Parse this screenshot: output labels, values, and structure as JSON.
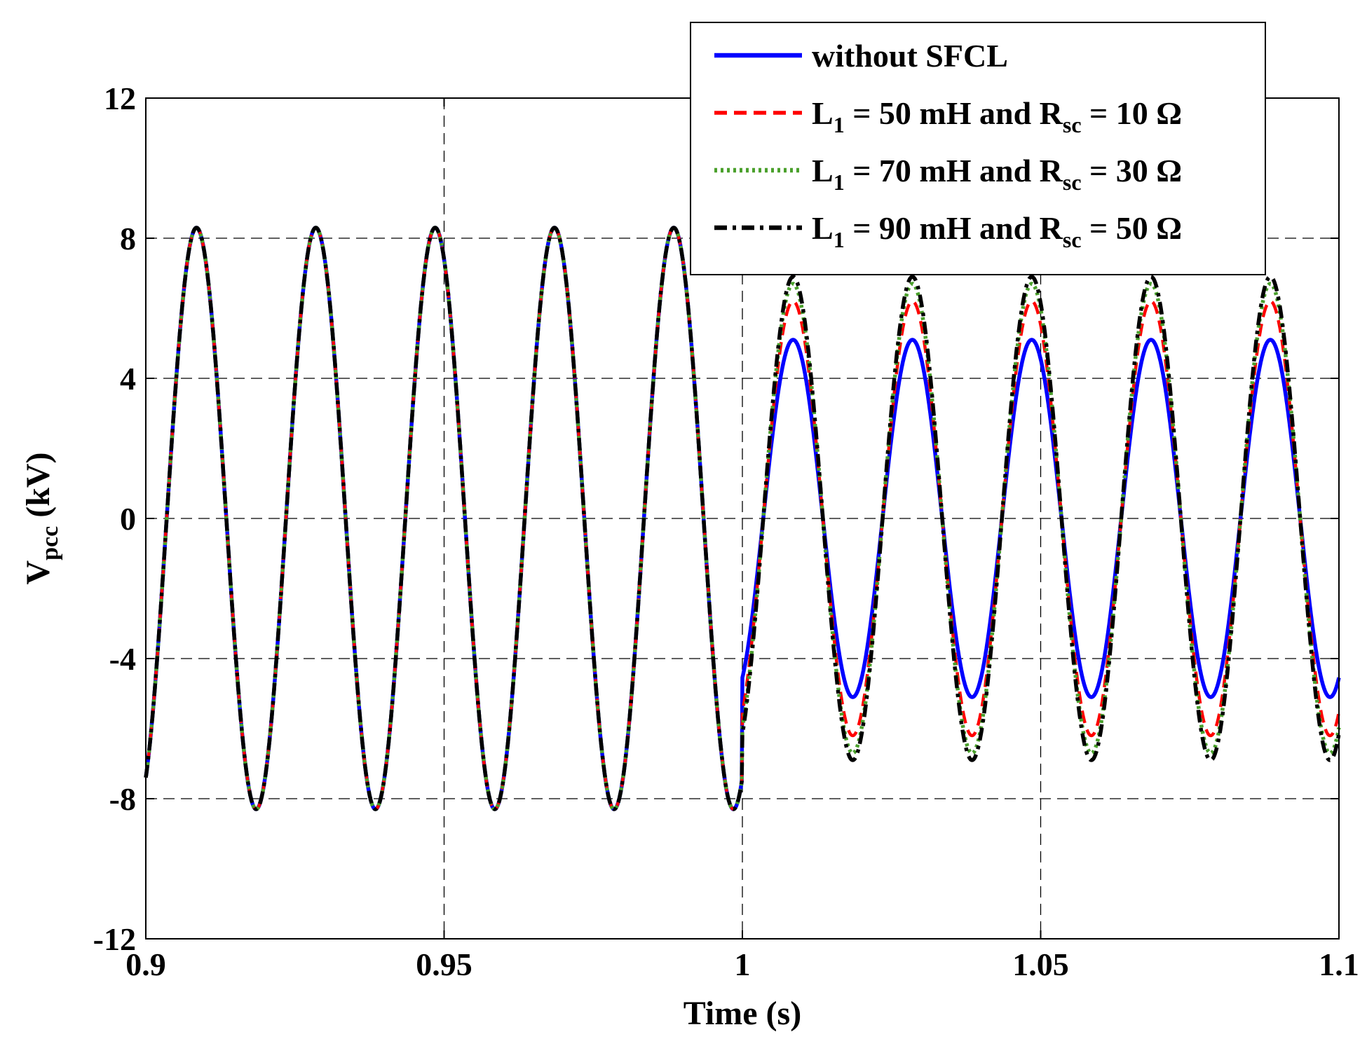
{
  "chart_data": {
    "type": "line",
    "title": "",
    "xlabel": "Time (s)",
    "ylabel": {
      "main": "V",
      "sub": "pcc",
      "unit": " (kV)"
    },
    "xlim": [
      0.9,
      1.1
    ],
    "ylim": [
      -12,
      12
    ],
    "xticks": [
      0.9,
      0.95,
      1.0,
      1.05,
      1.1
    ],
    "xtick_labels": [
      "0.9",
      "0.95",
      "1",
      "1.05",
      "1.1"
    ],
    "yticks": [
      -12,
      -8,
      -4,
      0,
      4,
      8,
      12
    ],
    "ytick_labels": [
      "-12",
      "-8",
      "-4",
      "0",
      "4",
      "8",
      "12"
    ],
    "grid": true,
    "legend_position": "top-right",
    "signal": {
      "frequency_hz": 50,
      "phase_deg": -63,
      "fault_time_s": 1.0,
      "prefault_amplitude_kv": 8.3
    },
    "series": [
      {
        "name": "without SFCL",
        "legend": {
          "main": "without SFCL"
        },
        "fault_amplitude_kv": 5.1,
        "color": "#0000ff",
        "style": "solid"
      },
      {
        "name": "L1 = 50 mH and Rsc = 10 Ω",
        "legend": {
          "a": "L",
          "a_sub": "1",
          "b": " = 50 mH and R",
          "b_sub": "sc",
          "c": " = 10 Ω"
        },
        "fault_amplitude_kv": 6.2,
        "color": "#ff0000",
        "style": "dashed"
      },
      {
        "name": "L1 = 70 mH and Rsc = 30 Ω",
        "legend": {
          "a": "L",
          "a_sub": "1",
          "b": " = 70 mH and R",
          "b_sub": "sc",
          "c": " = 30 Ω"
        },
        "fault_amplitude_kv": 6.7,
        "color": "#4aa02c",
        "style": "dotted"
      },
      {
        "name": "L1 = 90 mH and Rsc = 50 Ω",
        "legend": {
          "a": "L",
          "a_sub": "1",
          "b": " = 90 mH and R",
          "b_sub": "sc",
          "c": " = 50 Ω"
        },
        "fault_amplitude_kv": 6.9,
        "color": "#000000",
        "style": "dashdot"
      }
    ]
  }
}
